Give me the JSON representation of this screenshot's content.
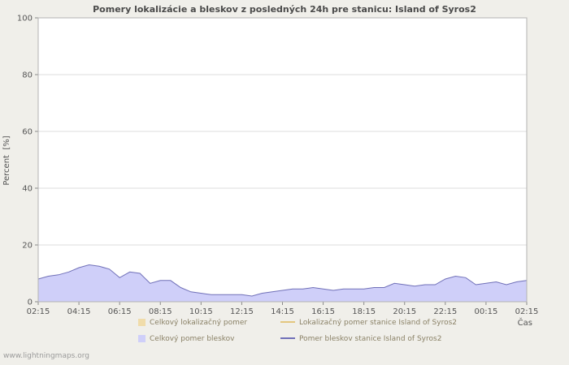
{
  "page": {
    "watermark": "www.lightningmaps.org"
  },
  "chart_data": {
    "type": "area",
    "title": "Pomery lokalizácie a bleskov z posledných 24h pre stanicu: Island of Syros2",
    "ylabel": "Percent  [%]",
    "xlabel": "Čas",
    "ylim": [
      0,
      100
    ],
    "yticks": [
      0,
      20,
      40,
      60,
      80,
      100
    ],
    "xtick_labels": [
      "02:15",
      "04:15",
      "06:15",
      "08:15",
      "10:15",
      "12:15",
      "14:15",
      "16:15",
      "18:15",
      "20:15",
      "22:15",
      "00:15",
      "02:15"
    ],
    "grid": true,
    "legend_position": "bottom",
    "plot_bg": "#ffffff",
    "grid_color": "#dcdcdc",
    "border_color": "#b3b3b3",
    "series": [
      {
        "name": "Celkový lokalizačný pomer",
        "type": "area",
        "color": "#f0dcaa",
        "values": []
      },
      {
        "name": "Lokalizačný pomer stanice Island of Syros2",
        "type": "line",
        "color": "#e3c77f",
        "values": []
      },
      {
        "name": "Celkový pomer bleskov",
        "type": "area",
        "color": "#cfcff9",
        "values": [
          8,
          9,
          9.5,
          10.5,
          12,
          13,
          12.5,
          11.5,
          8.5,
          10.5,
          10,
          6.5,
          7.5,
          7.5,
          5,
          3.5,
          3,
          2.5,
          2.5,
          2.5,
          2.5,
          2,
          3,
          3.5,
          4,
          4.5,
          4.5,
          5,
          4.5,
          4,
          4.5,
          4.5,
          4.5,
          5,
          5,
          6.5,
          6,
          5.5,
          6,
          6,
          8,
          9,
          8.5,
          6,
          6.5,
          7,
          6,
          7,
          7.5
        ]
      },
      {
        "name": "Pomer bleskov stanice Island of Syros2",
        "type": "line",
        "color": "#7070b8",
        "values": [
          8,
          9,
          9.5,
          10.5,
          12,
          13,
          12.5,
          11.5,
          8.5,
          10.5,
          10,
          6.5,
          7.5,
          7.5,
          5,
          3.5,
          3,
          2.5,
          2.5,
          2.5,
          2.5,
          2,
          3,
          3.5,
          4,
          4.5,
          4.5,
          5,
          4.5,
          4,
          4.5,
          4.5,
          4.5,
          5,
          5,
          6.5,
          6,
          5.5,
          6,
          6,
          8,
          9,
          8.5,
          6,
          6.5,
          7,
          6,
          7,
          7.5
        ]
      }
    ]
  }
}
